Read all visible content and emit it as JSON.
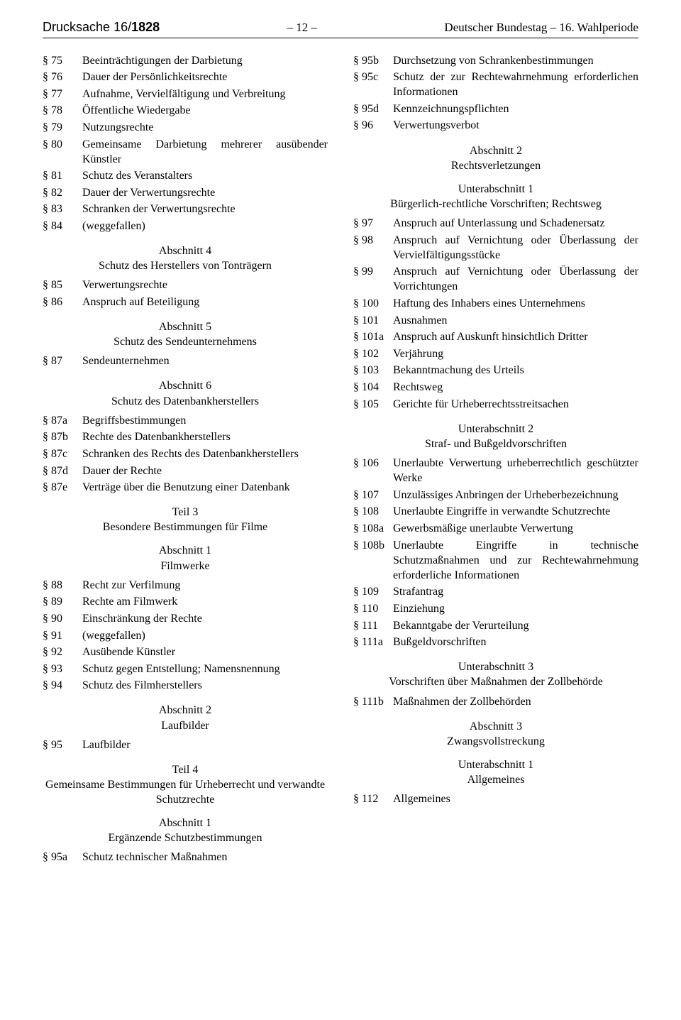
{
  "header": {
    "drucksache_label": "Drucksache",
    "drucksache_num_prefix": "16/",
    "drucksache_num_bold": "1828",
    "page_num": "– 12 –",
    "right": "Deutscher Bundestag – 16. Wahlperiode"
  },
  "left_col": [
    {
      "type": "entry",
      "sec": "§ 75",
      "txt": "Beeinträchtigungen der Darbietung"
    },
    {
      "type": "entry",
      "sec": "§ 76",
      "txt": "Dauer der Persönlichkeitsrechte"
    },
    {
      "type": "entry",
      "sec": "§ 77",
      "txt": "Aufnahme, Vervielfältigung und Verbreitung"
    },
    {
      "type": "entry",
      "sec": "§ 78",
      "txt": "Öffentliche Wiedergabe"
    },
    {
      "type": "entry",
      "sec": "§ 79",
      "txt": "Nutzungsrechte"
    },
    {
      "type": "entry",
      "sec": "§ 80",
      "txt": "Gemeinsame Darbietung mehrerer ausübender Künstler"
    },
    {
      "type": "entry",
      "sec": "§ 81",
      "txt": "Schutz des Veranstalters"
    },
    {
      "type": "entry",
      "sec": "§ 82",
      "txt": "Dauer der Verwertungsrechte"
    },
    {
      "type": "entry",
      "sec": "§ 83",
      "txt": "Schranken der Verwertungsrechte"
    },
    {
      "type": "entry",
      "sec": "§ 84",
      "txt": "(weggefallen)"
    },
    {
      "type": "heading",
      "lines": [
        "Abschnitt 4",
        "Schutz des Herstellers von Tonträgern"
      ]
    },
    {
      "type": "entry",
      "sec": "§ 85",
      "txt": "Verwertungsrechte"
    },
    {
      "type": "entry",
      "sec": "§ 86",
      "txt": "Anspruch auf Beteiligung"
    },
    {
      "type": "heading",
      "lines": [
        "Abschnitt 5",
        "Schutz des Sendeunternehmens"
      ]
    },
    {
      "type": "entry",
      "sec": "§ 87",
      "txt": "Sendeunternehmen"
    },
    {
      "type": "heading",
      "lines": [
        "Abschnitt 6",
        "Schutz des Datenbankherstellers"
      ]
    },
    {
      "type": "entry",
      "sec": "§ 87a",
      "txt": "Begriffsbestimmungen"
    },
    {
      "type": "entry",
      "sec": "§ 87b",
      "txt": "Rechte des Datenbankherstellers"
    },
    {
      "type": "entry",
      "sec": "§ 87c",
      "txt": "Schranken des Rechts des Datenbankherstellers"
    },
    {
      "type": "entry",
      "sec": "§ 87d",
      "txt": "Dauer der Rechte"
    },
    {
      "type": "entry",
      "sec": "§ 87e",
      "txt": "Verträge über die Benutzung einer Datenbank"
    },
    {
      "type": "heading",
      "lines": [
        "Teil 3",
        "Besondere Bestimmungen für Filme"
      ]
    },
    {
      "type": "heading",
      "lines": [
        "Abschnitt 1",
        "Filmwerke"
      ]
    },
    {
      "type": "entry",
      "sec": "§ 88",
      "txt": "Recht zur Verfilmung"
    },
    {
      "type": "entry",
      "sec": "§ 89",
      "txt": "Rechte am Filmwerk"
    },
    {
      "type": "entry",
      "sec": "§ 90",
      "txt": "Einschränkung der Rechte"
    },
    {
      "type": "entry",
      "sec": "§ 91",
      "txt": "(weggefallen)"
    },
    {
      "type": "entry",
      "sec": "§ 92",
      "txt": "Ausübende Künstler"
    },
    {
      "type": "entry",
      "sec": "§ 93",
      "txt": "Schutz gegen Entstellung; Namensnennung"
    },
    {
      "type": "entry",
      "sec": "§ 94",
      "txt": "Schutz des Filmherstellers"
    },
    {
      "type": "heading",
      "lines": [
        "Abschnitt 2",
        "Laufbilder"
      ]
    },
    {
      "type": "entry",
      "sec": "§ 95",
      "txt": "Laufbilder"
    },
    {
      "type": "heading",
      "lines": [
        "Teil 4",
        "Gemeinsame Bestimmungen für Urheberrecht und verwandte Schutzrechte"
      ]
    },
    {
      "type": "heading",
      "lines": [
        "Abschnitt 1",
        "Ergänzende Schutzbestimmungen"
      ]
    },
    {
      "type": "entry",
      "sec": "§ 95a",
      "txt": "Schutz technischer Maßnahmen"
    }
  ],
  "right_col": [
    {
      "type": "entry",
      "sec": "§ 95b",
      "txt": "Durchsetzung von Schrankenbestimmungen"
    },
    {
      "type": "entry",
      "sec": "§ 95c",
      "txt": "Schutz der zur Rechtewahrnehmung erforderlichen Informationen"
    },
    {
      "type": "entry",
      "sec": "§ 95d",
      "txt": "Kennzeichnungspflichten"
    },
    {
      "type": "entry",
      "sec": "§ 96",
      "txt": "Verwertungsverbot"
    },
    {
      "type": "heading",
      "lines": [
        "Abschnitt 2",
        "Rechtsverletzungen"
      ]
    },
    {
      "type": "heading",
      "lines": [
        "Unterabschnitt 1",
        "Bürgerlich-rechtliche Vorschriften; Rechtsweg"
      ]
    },
    {
      "type": "entry",
      "sec": "§ 97",
      "txt": "Anspruch auf Unterlassung und Schadenersatz"
    },
    {
      "type": "entry",
      "sec": "§ 98",
      "txt": "Anspruch auf Vernichtung oder Überlassung der Vervielfältigungsstücke"
    },
    {
      "type": "entry",
      "sec": "§ 99",
      "txt": "Anspruch auf Vernichtung oder Überlassung der Vorrichtungen"
    },
    {
      "type": "entry",
      "sec": "§ 100",
      "txt": "Haftung des Inhabers eines Unternehmens"
    },
    {
      "type": "entry",
      "sec": "§ 101",
      "txt": "Ausnahmen"
    },
    {
      "type": "entry",
      "sec": "§ 101a",
      "txt": "Anspruch auf Auskunft hinsichtlich Dritter"
    },
    {
      "type": "entry",
      "sec": "§ 102",
      "txt": "Verjährung"
    },
    {
      "type": "entry",
      "sec": "§ 103",
      "txt": "Bekanntmachung des Urteils"
    },
    {
      "type": "entry",
      "sec": "§ 104",
      "txt": "Rechtsweg"
    },
    {
      "type": "entry",
      "sec": "§ 105",
      "txt": "Gerichte für Urheberrechtsstreitsachen"
    },
    {
      "type": "heading",
      "lines": [
        "Unterabschnitt 2",
        "Straf- und Bußgeldvorschriften"
      ]
    },
    {
      "type": "entry",
      "sec": "§ 106",
      "txt": "Unerlaubte Verwertung urheberrechtlich geschützter Werke"
    },
    {
      "type": "entry",
      "sec": "§ 107",
      "txt": "Unzulässiges Anbringen der Urheberbezeichnung"
    },
    {
      "type": "entry",
      "sec": "§ 108",
      "txt": "Unerlaubte Eingriffe in verwandte Schutzrechte"
    },
    {
      "type": "entry",
      "sec": "§ 108a",
      "txt": "Gewerbsmäßige unerlaubte Verwertung"
    },
    {
      "type": "entry",
      "sec": "§ 108b",
      "txt": "Unerlaubte Eingriffe in technische Schutzmaßnahmen und zur Rechtewahrnehmung erforderliche Informationen"
    },
    {
      "type": "entry",
      "sec": "§ 109",
      "txt": "Strafantrag"
    },
    {
      "type": "entry",
      "sec": "§ 110",
      "txt": "Einziehung"
    },
    {
      "type": "entry",
      "sec": "§ 111",
      "txt": "Bekanntgabe der Verurteilung"
    },
    {
      "type": "entry",
      "sec": "§ 111a",
      "txt": "Bußgeldvorschriften"
    },
    {
      "type": "heading",
      "lines": [
        "Unterabschnitt 3",
        "Vorschriften über Maßnahmen der Zollbehörde"
      ]
    },
    {
      "type": "entry",
      "sec": "§ 111b",
      "txt": "Maßnahmen der Zollbehörden"
    },
    {
      "type": "heading",
      "lines": [
        "Abschnitt 3",
        "Zwangsvollstreckung"
      ]
    },
    {
      "type": "heading",
      "lines": [
        "Unterabschnitt 1",
        "Allgemeines"
      ]
    },
    {
      "type": "entry",
      "sec": "§ 112",
      "txt": "Allgemeines"
    }
  ]
}
